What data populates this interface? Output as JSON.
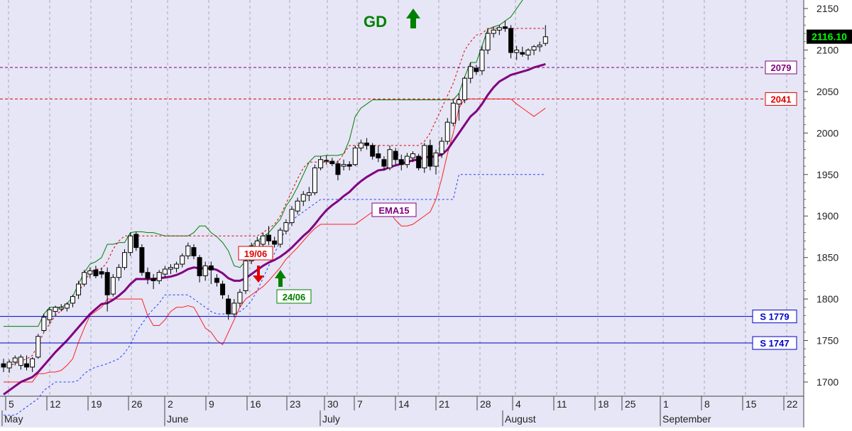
{
  "chart_data": {
    "type": "candlestick",
    "y_axis": {
      "range": [
        1680,
        2160
      ],
      "ticks": [
        1700,
        1750,
        1800,
        1850,
        1900,
        1950,
        2000,
        2050,
        2100,
        2150
      ],
      "side": "right"
    },
    "x_axis": {
      "day_labels": [
        "5",
        "12",
        "19",
        "26",
        "2",
        "9",
        "16",
        "23",
        "30",
        "7",
        "14",
        "21",
        "28",
        "4",
        "11",
        "18",
        "25",
        "1",
        "8",
        "15",
        "22"
      ],
      "month_labels": [
        "May",
        "June",
        "July",
        "August",
        "September"
      ]
    },
    "last_price": "2116.10",
    "signal": {
      "text": "GD",
      "direction": "up"
    },
    "annotations": [
      {
        "text": "19/06",
        "date": "19/06",
        "type": "sell"
      },
      {
        "text": "24/06",
        "date": "24/06",
        "type": "buy"
      },
      {
        "text": "EMA15",
        "type": "series-label"
      }
    ],
    "levels": [
      {
        "label": "2079",
        "value": 2079,
        "color": "#800080",
        "style": "dashed"
      },
      {
        "label": "2041",
        "value": 2041,
        "color": "#e00000",
        "style": "dashed"
      },
      {
        "label": "S 1779",
        "value": 1779,
        "color": "#0000cc",
        "style": "solid"
      },
      {
        "label": "S 1747",
        "value": 1747,
        "color": "#0000cc",
        "style": "solid"
      }
    ],
    "ohlc": [
      [
        1722,
        1728,
        1712,
        1718
      ],
      [
        1717,
        1727,
        1711,
        1724
      ],
      [
        1724,
        1732,
        1720,
        1729
      ],
      [
        1720,
        1733,
        1715,
        1730
      ],
      [
        1722,
        1732,
        1714,
        1718
      ],
      [
        1718,
        1730,
        1712,
        1728
      ],
      [
        1730,
        1758,
        1728,
        1755
      ],
      [
        1762,
        1782,
        1760,
        1778
      ],
      [
        1775,
        1790,
        1770,
        1787
      ],
      [
        1785,
        1792,
        1780,
        1790
      ],
      [
        1788,
        1794,
        1785,
        1790
      ],
      [
        1789,
        1796,
        1785,
        1794
      ],
      [
        1795,
        1805,
        1790,
        1803
      ],
      [
        1805,
        1822,
        1800,
        1818
      ],
      [
        1818,
        1835,
        1815,
        1832
      ],
      [
        1830,
        1838,
        1825,
        1834
      ],
      [
        1835,
        1840,
        1825,
        1828
      ],
      [
        1833,
        1838,
        1825,
        1830
      ],
      [
        1832,
        1838,
        1785,
        1805
      ],
      [
        1806,
        1830,
        1803,
        1826
      ],
      [
        1826,
        1842,
        1822,
        1838
      ],
      [
        1838,
        1860,
        1835,
        1856
      ],
      [
        1856,
        1880,
        1852,
        1876
      ],
      [
        1878,
        1881,
        1858,
        1862
      ],
      [
        1862,
        1866,
        1828,
        1832
      ],
      [
        1832,
        1838,
        1818,
        1825
      ],
      [
        1825,
        1830,
        1812,
        1822
      ],
      [
        1822,
        1835,
        1818,
        1832
      ],
      [
        1830,
        1840,
        1826,
        1836
      ],
      [
        1836,
        1842,
        1830,
        1838
      ],
      [
        1837,
        1845,
        1832,
        1842
      ],
      [
        1842,
        1855,
        1838,
        1852
      ],
      [
        1852,
        1868,
        1848,
        1864
      ],
      [
        1862,
        1866,
        1848,
        1852
      ],
      [
        1850,
        1853,
        1820,
        1828
      ],
      [
        1828,
        1845,
        1822,
        1840
      ],
      [
        1840,
        1845,
        1818,
        1835
      ],
      [
        1825,
        1830,
        1815,
        1820
      ],
      [
        1818,
        1822,
        1800,
        1805
      ],
      [
        1800,
        1805,
        1775,
        1782
      ],
      [
        1782,
        1800,
        1778,
        1795
      ],
      [
        1795,
        1812,
        1790,
        1808
      ],
      [
        1810,
        1850,
        1806,
        1846
      ],
      [
        1846,
        1868,
        1842,
        1864
      ],
      [
        1862,
        1875,
        1855,
        1870
      ],
      [
        1866,
        1880,
        1862,
        1876
      ],
      [
        1877,
        1888,
        1865,
        1870
      ],
      [
        1870,
        1875,
        1862,
        1866
      ],
      [
        1866,
        1886,
        1862,
        1883
      ],
      [
        1882,
        1896,
        1878,
        1892
      ],
      [
        1892,
        1912,
        1888,
        1908
      ],
      [
        1906,
        1922,
        1902,
        1918
      ],
      [
        1918,
        1930,
        1912,
        1926
      ],
      [
        1925,
        1935,
        1918,
        1928
      ],
      [
        1928,
        1962,
        1925,
        1958
      ],
      [
        1958,
        1972,
        1955,
        1968
      ],
      [
        1967,
        1973,
        1962,
        1966
      ],
      [
        1966,
        1970,
        1960,
        1963
      ],
      [
        1963,
        1967,
        1943,
        1950
      ],
      [
        1960,
        1968,
        1955,
        1962
      ],
      [
        1962,
        1966,
        1955,
        1960
      ],
      [
        1962,
        1985,
        1960,
        1982
      ],
      [
        1982,
        1992,
        1978,
        1988
      ],
      [
        1988,
        1994,
        1980,
        1985
      ],
      [
        1985,
        1988,
        1968,
        1972
      ],
      [
        1975,
        1985,
        1965,
        1970
      ],
      [
        1968,
        1972,
        1955,
        1960
      ],
      [
        1958,
        1985,
        1955,
        1980
      ],
      [
        1978,
        1982,
        1962,
        1968
      ],
      [
        1968,
        1974,
        1955,
        1962
      ],
      [
        1962,
        1976,
        1958,
        1972
      ],
      [
        1970,
        1978,
        1965,
        1975
      ],
      [
        1972,
        1975,
        1955,
        1958
      ],
      [
        1958,
        1988,
        1952,
        1985
      ],
      [
        1985,
        1992,
        1955,
        1960
      ],
      [
        1960,
        1980,
        1950,
        1976
      ],
      [
        1975,
        1995,
        1970,
        1990
      ],
      [
        1990,
        2018,
        1986,
        2013
      ],
      [
        2012,
        2040,
        2008,
        2036
      ],
      [
        2035,
        2048,
        2015,
        2040
      ],
      [
        2040,
        2068,
        2036,
        2066
      ],
      [
        2066,
        2085,
        2060,
        2080
      ],
      [
        2078,
        2082,
        2070,
        2074
      ],
      [
        2075,
        2105,
        2070,
        2100
      ],
      [
        2100,
        2125,
        2095,
        2120
      ],
      [
        2120,
        2128,
        2115,
        2124
      ],
      [
        2124,
        2130,
        2118,
        2127
      ],
      [
        2128,
        2135,
        2122,
        2126
      ],
      [
        2126,
        2130,
        2090,
        2097
      ],
      [
        2097,
        2105,
        2088,
        2100
      ],
      [
        2097,
        2104,
        2092,
        2095
      ],
      [
        2094,
        2102,
        2088,
        2100
      ],
      [
        2100,
        2106,
        2094,
        2104
      ],
      [
        2104,
        2110,
        2098,
        2106
      ],
      [
        2108,
        2130,
        2105,
        2116
      ]
    ],
    "ema15": [
      1685,
      1690,
      1695,
      1700,
      1703,
      1706,
      1712,
      1720,
      1728,
      1736,
      1743,
      1750,
      1758,
      1766,
      1774,
      1782,
      1788,
      1794,
      1795,
      1799,
      1804,
      1810,
      1818,
      1824,
      1824,
      1824,
      1824,
      1825,
      1826,
      1827,
      1829,
      1832,
      1836,
      1838,
      1837,
      1837,
      1837,
      1835,
      1831,
      1825,
      1822,
      1822,
      1825,
      1830,
      1835,
      1840,
      1844,
      1847,
      1851,
      1856,
      1862,
      1869,
      1876,
      1882,
      1890,
      1899,
      1907,
      1913,
      1918,
      1924,
      1929,
      1936,
      1942,
      1947,
      1951,
      1955,
      1956,
      1959,
      1961,
      1963,
      1965,
      1967,
      1968,
      1971,
      1971,
      1972,
      1974,
      1980,
      1990,
      2000,
      2010,
      2020,
      2026,
      2035,
      2046,
      2055,
      2062,
      2066,
      2070,
      2072,
      2074,
      2076,
      2079,
      2081,
      2083
    ],
    "upper_band": [
      1767,
      1767,
      1767,
      1767,
      1767,
      1767,
      1767,
      1782,
      1790,
      1790,
      1790,
      1794,
      1803,
      1818,
      1832,
      1842,
      1845,
      1850,
      1866,
      1866,
      1868,
      1868,
      1880,
      1881,
      1881,
      1880,
      1880,
      1878,
      1876,
      1876,
      1876,
      1876,
      1876,
      1880,
      1888,
      1888,
      1880,
      1875,
      1868,
      1858,
      1840,
      1838,
      1846,
      1864,
      1870,
      1875,
      1880,
      1888,
      1896,
      1912,
      1922,
      1935,
      1950,
      1965,
      1972,
      1972,
      1973,
      1973,
      1973,
      1975,
      1992,
      2020,
      2030,
      2035,
      2040,
      2040,
      2040,
      2040,
      2040,
      2040,
      2040,
      2040,
      2040,
      2040,
      2040,
      2040,
      2040,
      2040,
      2040,
      2048,
      2068,
      2085,
      2085,
      2105,
      2125,
      2128,
      2130,
      2135,
      2140,
      2150,
      2160,
      2168,
      2175,
      2180,
      2185
    ],
    "lower_band": [
      1700,
      1700,
      1700,
      1700,
      1700,
      1700,
      1710,
      1710,
      1712,
      1712,
      1714,
      1720,
      1728,
      1748,
      1765,
      1780,
      1785,
      1790,
      1800,
      1800,
      1800,
      1800,
      1800,
      1800,
      1800,
      1780,
      1768,
      1768,
      1775,
      1785,
      1790,
      1790,
      1792,
      1790,
      1778,
      1765,
      1760,
      1750,
      1745,
      1760,
      1775,
      1790,
      1800,
      1805,
      1810,
      1815,
      1822,
      1830,
      1838,
      1848,
      1855,
      1862,
      1870,
      1878,
      1885,
      1890,
      1890,
      1890,
      1890,
      1890,
      1890,
      1890,
      1895,
      1900,
      1905,
      1905,
      1905,
      1905,
      1895,
      1888,
      1888,
      1890,
      1895,
      1900,
      1905,
      1920,
      1945,
      1975,
      2000,
      2030,
      2041,
      2041,
      2041,
      2041,
      2041,
      2041,
      2041,
      2041,
      2041,
      2035,
      2030,
      2025,
      2020,
      2025,
      2030
    ],
    "stop_red_dashed": [
      1718,
      1720,
      1722,
      1725,
      1728,
      1732,
      1745,
      1760,
      1770,
      1780,
      1786,
      1790,
      1798,
      1808,
      1820,
      1832,
      1836,
      1836,
      1845,
      1860,
      1870,
      1876,
      1876,
      1876,
      1876,
      1876,
      1876,
      1876,
      1876,
      1876,
      1876,
      1876,
      1876,
      1876,
      1876,
      1876,
      1876,
      1876,
      1876,
      1876,
      1876,
      1876,
      1876,
      1876,
      1876,
      1880,
      1885,
      1890,
      1900,
      1915,
      1930,
      1945,
      1958,
      1965,
      1965,
      1965,
      1965,
      1965,
      1965,
      1975,
      1985,
      1985,
      1985,
      1985,
      1985,
      1985,
      1985,
      1985,
      1985,
      1985,
      1985,
      1985,
      1985,
      1990,
      2000,
      2015,
      2030,
      2045,
      2060,
      2080,
      2100,
      2110,
      2118,
      2120,
      2126,
      2126,
      2126,
      2126,
      2126,
      2126,
      2126,
      2126,
      2126,
      2126,
      2126
    ],
    "stop_blue_dotted": [
      1660,
      1660,
      1660,
      1665,
      1670,
      1675,
      1680,
      1690,
      1695,
      1700,
      1700,
      1700,
      1700,
      1702,
      1710,
      1715,
      1718,
      1720,
      1722,
      1725,
      1728,
      1735,
      1745,
      1760,
      1770,
      1780,
      1788,
      1795,
      1805,
      1805,
      1805,
      1805,
      1805,
      1800,
      1795,
      1790,
      1785,
      1782,
      1782,
      1782,
      1782,
      1785,
      1790,
      1798,
      1810,
      1825,
      1840,
      1855,
      1870,
      1885,
      1895,
      1900,
      1905,
      1910,
      1915,
      1920,
      1920,
      1920,
      1920,
      1920,
      1920,
      1920,
      1920,
      1920,
      1920,
      1920,
      1920,
      1920,
      1920,
      1920,
      1920,
      1920,
      1920,
      1920,
      1920,
      1920,
      1920,
      1920,
      1920,
      1950,
      1950,
      1950,
      1950,
      1950,
      1950,
      1950,
      1950,
      1950,
      1950,
      1950,
      1950,
      1950,
      1950,
      1950,
      1950
    ]
  }
}
